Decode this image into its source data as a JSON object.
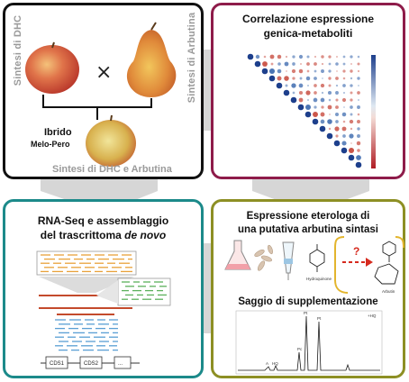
{
  "colors": {
    "panel1_border": "#111111",
    "panel2_border": "#8e1c4a",
    "panel3_border": "#1c8a8a",
    "panel4_border": "#8d8f24",
    "connector": "#cfcfcf",
    "red_arrow": "#d62a1e"
  },
  "panel1": {
    "left_vertical_label": "Sintesi di DHC",
    "right_vertical_label": "Sintesi di Arbutina",
    "cross_symbol": "×",
    "hybrid_label_line1": "Ibrido",
    "hybrid_label_line2": "Melo-Pero",
    "bottom_label": "Sintesi di DHC e Arbutina"
  },
  "panel2": {
    "title_line1": "Correlazione espressione",
    "title_line2": "genica-metaboliti"
  },
  "panel3": {
    "title_line1": "RNA-Seq e assemblaggio",
    "title_line2_prefix": "del trascrittoma ",
    "title_line2_italic": "de novo",
    "exon_labels": [
      "CDS1",
      "CDS2",
      "..."
    ]
  },
  "panel4": {
    "title_line1": "Espressione eterologa di",
    "title_line2": "una putativa arbutina sintasi",
    "question_mark": "?",
    "molecule_left_label": "Hydroquinone",
    "molecule_right_label": "Arbutin",
    "assay_title": "Saggio di supplementazione",
    "chromatogram_tag": "+HQ",
    "peak_labels": [
      "Pt",
      "Pt",
      "Pc",
      "A",
      "HQ"
    ]
  }
}
